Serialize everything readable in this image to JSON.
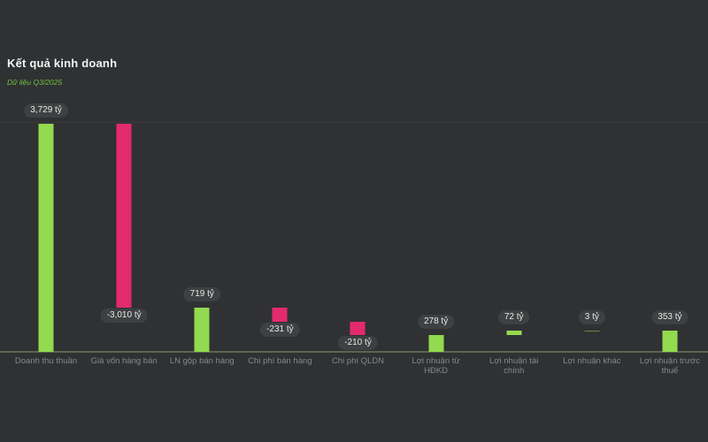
{
  "header": {
    "title": "Kết quả kinh doanh",
    "subtitle": "Dữ liệu Q3/2025"
  },
  "colors": {
    "background": "#303133",
    "positive_bar": "#92da4f",
    "negative_bar": "#e32a6c",
    "pill_background": "#3e4041",
    "pill_text": "#e8e9e9",
    "category_text": "#85888a",
    "axis_line": "#5b6650",
    "gridline": "#3a3b3d",
    "title_text": "#f2f3f3",
    "subtitle_text": "#72c13e"
  },
  "chart_data": {
    "type": "bar",
    "subtype": "waterfall",
    "title": "Kết quả kinh doanh",
    "subtitle": "Dữ liệu Q3/2025",
    "unit": "tỷ",
    "xlabel": "",
    "ylabel": "",
    "ylim": [
      0,
      3729
    ],
    "grid": "single top gridline, baseline axis",
    "legend": "none",
    "categories": [
      "Doanh thu thuần",
      "Giá vốn hàng bán",
      "LN gộp bán hàng",
      "Chi phí bán hàng",
      "Chi phí QLDN",
      "Lợi nhuận từ HĐKD",
      "Lợi nhuận tài chính",
      "Lợi nhuận khác",
      "Lợi nhuận trước thuế"
    ],
    "items": [
      {
        "label": "Doanh thu thuần",
        "value": 3729,
        "display": "3,729 tỷ",
        "start": 0,
        "end": 3729,
        "sign": "positive",
        "label_position": "above"
      },
      {
        "label": "Giá vốn hàng bán",
        "value": -3010,
        "display": "-3,010 tỷ",
        "start": 3729,
        "end": 719,
        "sign": "negative",
        "label_position": "below"
      },
      {
        "label": "LN gộp bán hàng",
        "value": 719,
        "display": "719 tỷ",
        "start": 0,
        "end": 719,
        "sign": "positive",
        "label_position": "above"
      },
      {
        "label": "Chi phí bán hàng",
        "value": -231,
        "display": "-231 tỷ",
        "start": 719,
        "end": 488,
        "sign": "negative",
        "label_position": "below"
      },
      {
        "label": "Chi phí QLDN",
        "value": -210,
        "display": "-210 tỷ",
        "start": 488,
        "end": 278,
        "sign": "negative",
        "label_position": "below"
      },
      {
        "label": "Lợi nhuận từ HĐKD",
        "value": 278,
        "display": "278 tỷ",
        "start": 0,
        "end": 278,
        "sign": "positive",
        "label_position": "above"
      },
      {
        "label": "Lợi nhuận tài chính",
        "value": 72,
        "display": "72 tỷ",
        "start": 278,
        "end": 350,
        "sign": "positive",
        "label_position": "above"
      },
      {
        "label": "Lợi nhuận khác",
        "value": 3,
        "display": "3 tỷ",
        "start": 350,
        "end": 353,
        "sign": "positive",
        "label_position": "above"
      },
      {
        "label": "Lợi nhuận trước thuế",
        "value": 353,
        "display": "353 tỷ",
        "start": 0,
        "end": 353,
        "sign": "positive",
        "label_position": "above"
      }
    ]
  }
}
